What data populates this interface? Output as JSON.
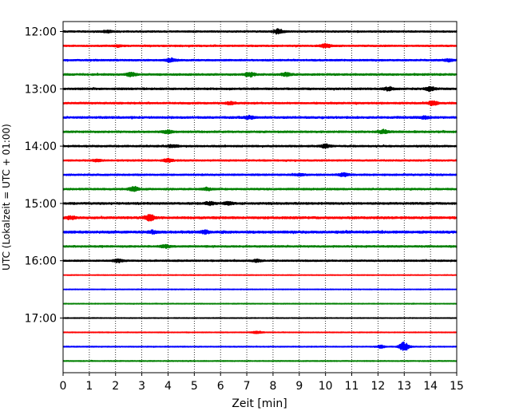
{
  "chart_data": {
    "type": "line",
    "xlabel": "Zeit  [min]",
    "ylabel": "UTC (Lokalzeit = UTC + 01:00)",
    "xlim": [
      0,
      15
    ],
    "x_ticks": [
      "0",
      "1",
      "2",
      "3",
      "4",
      "5",
      "6",
      "7",
      "8",
      "9",
      "10",
      "11",
      "12",
      "13",
      "14",
      "15"
    ],
    "y_ticks": [
      "12:00",
      "13:00",
      "14:00",
      "15:00",
      "16:00",
      "17:00"
    ],
    "grid": "vertical dotted at each minute",
    "trace_interval_minutes": 15,
    "colors_cycle": [
      "#000000",
      "#ff0000",
      "#0000ff",
      "#008000"
    ],
    "traces": [
      {
        "start": "12:00",
        "color": "#000000",
        "noise": 0.9,
        "bursts": [
          [
            8.2,
            3.0
          ],
          [
            1.7,
            1.3
          ]
        ]
      },
      {
        "start": "12:15",
        "color": "#ff0000",
        "noise": 0.9,
        "bursts": [
          [
            10.0,
            2.5
          ],
          [
            2.1,
            1.2
          ]
        ]
      },
      {
        "start": "12:30",
        "color": "#0000ff",
        "noise": 1.0,
        "bursts": [
          [
            4.1,
            2.2
          ],
          [
            14.7,
            1.5
          ]
        ]
      },
      {
        "start": "12:45",
        "color": "#008000",
        "noise": 1.1,
        "bursts": [
          [
            2.6,
            2.2
          ],
          [
            7.1,
            2.6
          ],
          [
            8.5,
            1.8
          ]
        ]
      },
      {
        "start": "13:00",
        "color": "#000000",
        "noise": 1.1,
        "bursts": [
          [
            12.4,
            2.0
          ],
          [
            14.0,
            2.2
          ]
        ]
      },
      {
        "start": "13:15",
        "color": "#ff0000",
        "noise": 1.0,
        "bursts": [
          [
            14.1,
            2.5
          ],
          [
            6.4,
            1.5
          ]
        ]
      },
      {
        "start": "13:30",
        "color": "#0000ff",
        "noise": 1.2,
        "bursts": [
          [
            7.1,
            1.6
          ],
          [
            13.8,
            1.4
          ]
        ]
      },
      {
        "start": "13:45",
        "color": "#008000",
        "noise": 1.1,
        "bursts": [
          [
            12.2,
            2.2
          ],
          [
            4.0,
            1.5
          ]
        ]
      },
      {
        "start": "14:00",
        "color": "#000000",
        "noise": 1.0,
        "bursts": [
          [
            4.2,
            1.8
          ],
          [
            10.0,
            2.0
          ]
        ]
      },
      {
        "start": "14:15",
        "color": "#ff0000",
        "noise": 0.9,
        "bursts": [
          [
            4.0,
            2.0
          ],
          [
            1.3,
            1.3
          ]
        ]
      },
      {
        "start": "14:30",
        "color": "#0000ff",
        "noise": 1.0,
        "bursts": [
          [
            10.7,
            2.5
          ],
          [
            9.0,
            1.4
          ]
        ]
      },
      {
        "start": "14:45",
        "color": "#008000",
        "noise": 1.0,
        "bursts": [
          [
            2.7,
            2.5
          ],
          [
            5.5,
            1.4
          ]
        ]
      },
      {
        "start": "15:00",
        "color": "#000000",
        "noise": 1.2,
        "bursts": [
          [
            5.6,
            1.8
          ],
          [
            6.3,
            1.6
          ]
        ]
      },
      {
        "start": "15:15",
        "color": "#ff0000",
        "noise": 1.3,
        "bursts": [
          [
            3.3,
            3.5
          ],
          [
            0.3,
            1.6
          ]
        ]
      },
      {
        "start": "15:30",
        "color": "#0000ff",
        "noise": 1.4,
        "bursts": [
          [
            5.4,
            1.6
          ],
          [
            3.4,
            1.4
          ]
        ]
      },
      {
        "start": "15:45",
        "color": "#008000",
        "noise": 1.0,
        "bursts": [
          [
            3.9,
            1.8
          ]
        ]
      },
      {
        "start": "16:00",
        "color": "#000000",
        "noise": 0.9,
        "bursts": [
          [
            2.1,
            1.8
          ],
          [
            7.4,
            1.3
          ]
        ]
      },
      {
        "start": "16:15",
        "color": "#ff0000",
        "noise": 0.35,
        "bursts": []
      },
      {
        "start": "16:30",
        "color": "#0000ff",
        "noise": 0.35,
        "bursts": []
      },
      {
        "start": "16:45",
        "color": "#008000",
        "noise": 0.4,
        "bursts": []
      },
      {
        "start": "17:00",
        "color": "#000000",
        "noise": 0.4,
        "bursts": []
      },
      {
        "start": "17:15",
        "color": "#ff0000",
        "noise": 0.4,
        "bursts": [
          [
            7.4,
            1.6
          ]
        ]
      },
      {
        "start": "17:30",
        "color": "#0000ff",
        "noise": 0.5,
        "bursts": [
          [
            13.0,
            5.5
          ],
          [
            12.1,
            1.6
          ]
        ]
      },
      {
        "start": "17:45",
        "color": "#008000",
        "noise": 0.5,
        "bursts": []
      }
    ]
  }
}
